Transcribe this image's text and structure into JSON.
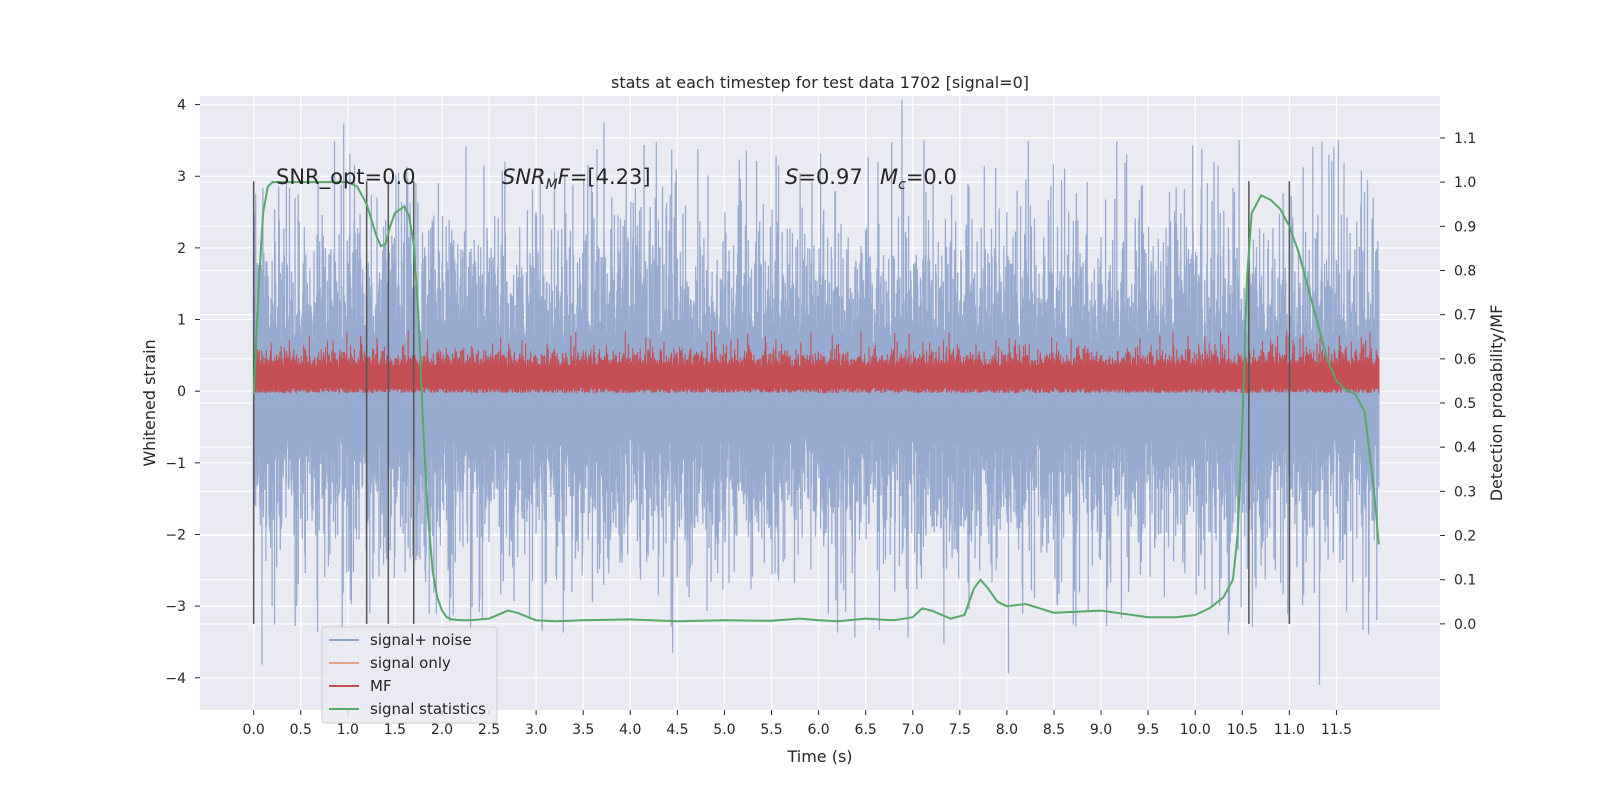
{
  "chart_data": {
    "type": "line",
    "title": "stats at each timestep for test data 1702 [signal=0]",
    "xlabel": "Time (s)",
    "ylabel": "Whitened strain",
    "y2label": "Detection probability/MF",
    "xlim": [
      -0.57,
      12.6
    ],
    "ylim": [
      -4.45,
      4.12
    ],
    "y2lim": [
      -0.195,
      1.195
    ],
    "xticks": [
      "0.0",
      "0.5",
      "1.0",
      "1.5",
      "2.0",
      "2.5",
      "3.0",
      "3.5",
      "4.0",
      "4.5",
      "5.0",
      "5.5",
      "6.0",
      "6.5",
      "7.0",
      "7.5",
      "8.0",
      "8.5",
      "9.0",
      "9.5",
      "10.0",
      "10.5",
      "11.0",
      "11.5"
    ],
    "yticks": [
      "4",
      "3",
      "2",
      "1",
      "0",
      "−1",
      "−2",
      "−3",
      "−4"
    ],
    "y2ticks": [
      "1.1",
      "1.0",
      "0.9",
      "0.8",
      "0.7",
      "0.6",
      "0.5",
      "0.4",
      "0.3",
      "0.2",
      "0.1",
      "0.0"
    ],
    "grid": true,
    "legend_position": "lower-left",
    "annotations": {
      "snr_opt": "SNR_opt=0.0",
      "snr_mf_main": "SNR",
      "snr_mf_sub": "M",
      "snr_mf_f": "F",
      "snr_mf_value": "=[4.23]",
      "s_symbol": "S",
      "s_value": "=0.97",
      "mc_main": "M",
      "mc_sub": "c",
      "mc_value": "=0.0"
    },
    "series": [
      {
        "name": "signal+ noise",
        "color": "#92a6cd",
        "x_range": [
          0.0,
          11.95
        ],
        "typical_range": [
          -1.7,
          1.7
        ],
        "extremes": [
          -4.1,
          3.75
        ]
      },
      {
        "name": "signal only",
        "color": "#e8a48a",
        "values": []
      },
      {
        "name": "MF",
        "color": "#c44e52",
        "x_range": [
          0.0,
          11.95
        ],
        "typical_range": [
          0.0,
          0.55
        ],
        "extremes": [
          0.0,
          0.85
        ]
      },
      {
        "name": "signal statistics",
        "color": "#55a868",
        "axis": "right",
        "x": [
          0.0,
          0.05,
          0.1,
          0.15,
          0.2,
          0.3,
          0.4,
          0.6,
          0.8,
          1.0,
          1.1,
          1.2,
          1.3,
          1.35,
          1.4,
          1.45,
          1.5,
          1.6,
          1.65,
          1.7,
          1.75,
          1.8,
          1.85,
          1.9,
          1.95,
          2.0,
          2.05,
          2.1,
          2.2,
          2.3,
          2.5,
          2.7,
          2.8,
          3.0,
          3.2,
          3.5,
          4.0,
          4.5,
          5.0,
          5.5,
          5.8,
          6.0,
          6.2,
          6.5,
          6.8,
          7.0,
          7.1,
          7.2,
          7.4,
          7.55,
          7.65,
          7.72,
          7.8,
          7.9,
          8.0,
          8.2,
          8.5,
          9.0,
          9.5,
          9.8,
          10.0,
          10.15,
          10.3,
          10.4,
          10.45,
          10.5,
          10.55,
          10.6,
          10.7,
          10.8,
          10.9,
          11.0,
          11.1,
          11.2,
          11.3,
          11.4,
          11.5,
          11.6,
          11.7,
          11.8,
          11.9,
          11.95
        ],
        "values": [
          0.52,
          0.75,
          0.93,
          0.99,
          1.0,
          1.0,
          1.0,
          1.0,
          1.0,
          1.0,
          0.99,
          0.95,
          0.88,
          0.855,
          0.86,
          0.9,
          0.93,
          0.945,
          0.925,
          0.86,
          0.7,
          0.45,
          0.25,
          0.12,
          0.06,
          0.03,
          0.015,
          0.01,
          0.008,
          0.008,
          0.012,
          0.03,
          0.025,
          0.008,
          0.006,
          0.008,
          0.01,
          0.006,
          0.008,
          0.007,
          0.012,
          0.008,
          0.006,
          0.012,
          0.008,
          0.015,
          0.035,
          0.03,
          0.012,
          0.02,
          0.08,
          0.1,
          0.08,
          0.05,
          0.04,
          0.045,
          0.025,
          0.03,
          0.015,
          0.015,
          0.02,
          0.035,
          0.06,
          0.1,
          0.2,
          0.45,
          0.78,
          0.93,
          0.97,
          0.96,
          0.94,
          0.9,
          0.84,
          0.76,
          0.68,
          0.6,
          0.55,
          0.53,
          0.52,
          0.48,
          0.3,
          0.18
        ]
      }
    ],
    "vertical_lines_x": [
      0.0,
      1.2,
      1.43,
      1.7,
      10.57,
      11.0
    ]
  }
}
